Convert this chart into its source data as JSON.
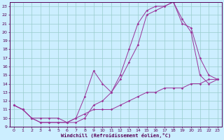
{
  "xlabel": "Windchill (Refroidissement éolien,°C)",
  "background_color": "#cceeff",
  "grid_color": "#99cccc",
  "line_color": "#993399",
  "xmin": 0,
  "xmax": 23,
  "ymin": 9,
  "ymax": 23,
  "line1_x": [
    0,
    1,
    2,
    3,
    4,
    5,
    6,
    7,
    8,
    9,
    10,
    11,
    12,
    13,
    14,
    15,
    16,
    17,
    18,
    19,
    20,
    21,
    22,
    23
  ],
  "line1_y": [
    11.5,
    11.0,
    10.0,
    9.5,
    9.5,
    9.5,
    9.5,
    9.5,
    10.0,
    11.5,
    12.0,
    13.0,
    15.0,
    18.0,
    21.0,
    22.5,
    23.0,
    23.0,
    23.5,
    21.0,
    20.5,
    17.0,
    15.0,
    14.5
  ],
  "line2_x": [
    0,
    1,
    2,
    3,
    4,
    5,
    6,
    7,
    8,
    9,
    10,
    11,
    12,
    13,
    14,
    15,
    16,
    17,
    18,
    19,
    20,
    21,
    22,
    23
  ],
  "line2_y": [
    11.5,
    11.0,
    10.0,
    9.5,
    9.5,
    9.5,
    9.5,
    10.0,
    12.5,
    15.5,
    14.0,
    13.0,
    14.5,
    16.5,
    18.5,
    22.0,
    22.5,
    23.0,
    23.5,
    21.5,
    20.0,
    15.0,
    14.0,
    14.5
  ],
  "line3_x": [
    0,
    1,
    2,
    3,
    4,
    5,
    6,
    7,
    8,
    9,
    10,
    11,
    12,
    13,
    14,
    15,
    16,
    17,
    18,
    19,
    20,
    21,
    22,
    23
  ],
  "line3_y": [
    11.5,
    11.0,
    10.0,
    10.0,
    10.0,
    10.0,
    9.5,
    10.0,
    10.5,
    11.0,
    11.0,
    11.0,
    11.5,
    12.0,
    12.5,
    13.0,
    13.0,
    13.5,
    13.5,
    13.5,
    14.0,
    14.0,
    14.5,
    14.5
  ]
}
